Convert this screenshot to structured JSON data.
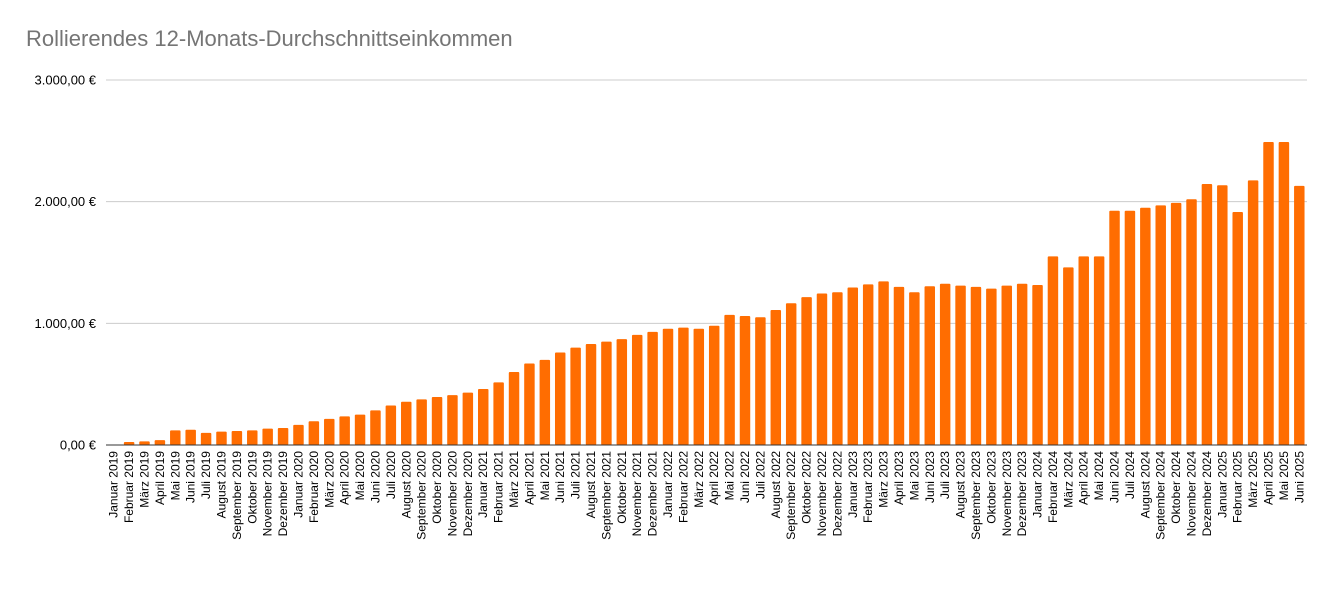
{
  "chart_data": {
    "type": "bar",
    "title": "Rollierendes 12-Monats-Durchschnittseinkommen",
    "xlabel": "",
    "ylabel": "",
    "ylim": [
      0,
      3000
    ],
    "yticks": [
      0,
      1000,
      2000,
      3000
    ],
    "ytick_labels": [
      "0,00 €",
      "1.000,00 €",
      "2.000,00 €",
      "3.000,00 €"
    ],
    "grid": true,
    "legend": "none",
    "bar_color": "#ff6d01",
    "categories": [
      "Januar 2019",
      "Februar 2019",
      "März 2019",
      "April 2019",
      "Mai 2019",
      "Juni 2019",
      "Juli 2019",
      "August 2019",
      "September 2019",
      "Oktober 2019",
      "November 2019",
      "Dezember 2019",
      "Januar 2020",
      "Februar 2020",
      "März 2020",
      "April 2020",
      "Mai 2020",
      "Juni 2020",
      "Juli 2020",
      "August 2020",
      "September 2020",
      "Oktober 2020",
      "November 2020",
      "Dezember 2020",
      "Januar 2021",
      "Februar 2021",
      "März 2021",
      "April 2021",
      "Mai 2021",
      "Juni 2021",
      "Juli 2021",
      "August 2021",
      "September 2021",
      "Oktober 2021",
      "November 2021",
      "Dezember 2021",
      "Januar 2022",
      "Februar 2022",
      "März 2022",
      "April 2022",
      "Mai 2022",
      "Juni 2022",
      "Juli 2022",
      "August 2022",
      "September 2022",
      "Oktober 2022",
      "November 2022",
      "Dezember 2022",
      "Januar 2023",
      "Februar 2023",
      "März 2023",
      "April 2023",
      "Mai 2023",
      "Juni 2023",
      "Juli 2023",
      "August 2023",
      "September 2023",
      "Oktober 2023",
      "November 2023",
      "Dezember 2023",
      "Januar 2024",
      "Februar 2024",
      "März 2024",
      "April 2024",
      "Mai 2024",
      "Juni 2024",
      "Juli 2024",
      "August 2024",
      "September 2024",
      "Oktober 2024",
      "November 2024",
      "Dezember 2024",
      "Januar 2025",
      "Februar 2025",
      "März 2025",
      "April 2025",
      "Mai 2025",
      "Juni 2025"
    ],
    "values": [
      0,
      25,
      30,
      40,
      120,
      125,
      100,
      110,
      115,
      120,
      135,
      140,
      165,
      195,
      215,
      235,
      250,
      285,
      325,
      355,
      375,
      395,
      410,
      430,
      460,
      515,
      600,
      670,
      700,
      760,
      800,
      830,
      850,
      870,
      905,
      930,
      955,
      965,
      955,
      980,
      1070,
      1060,
      1050,
      1110,
      1165,
      1215,
      1245,
      1255,
      1295,
      1320,
      1345,
      1300,
      1255,
      1305,
      1325,
      1310,
      1300,
      1285,
      1310,
      1325,
      1315,
      1550,
      1460,
      1550,
      1550,
      1925,
      1925,
      1950,
      1970,
      1990,
      2020,
      2145,
      2135,
      1915,
      2175,
      2490,
      2490,
      2130
    ]
  }
}
